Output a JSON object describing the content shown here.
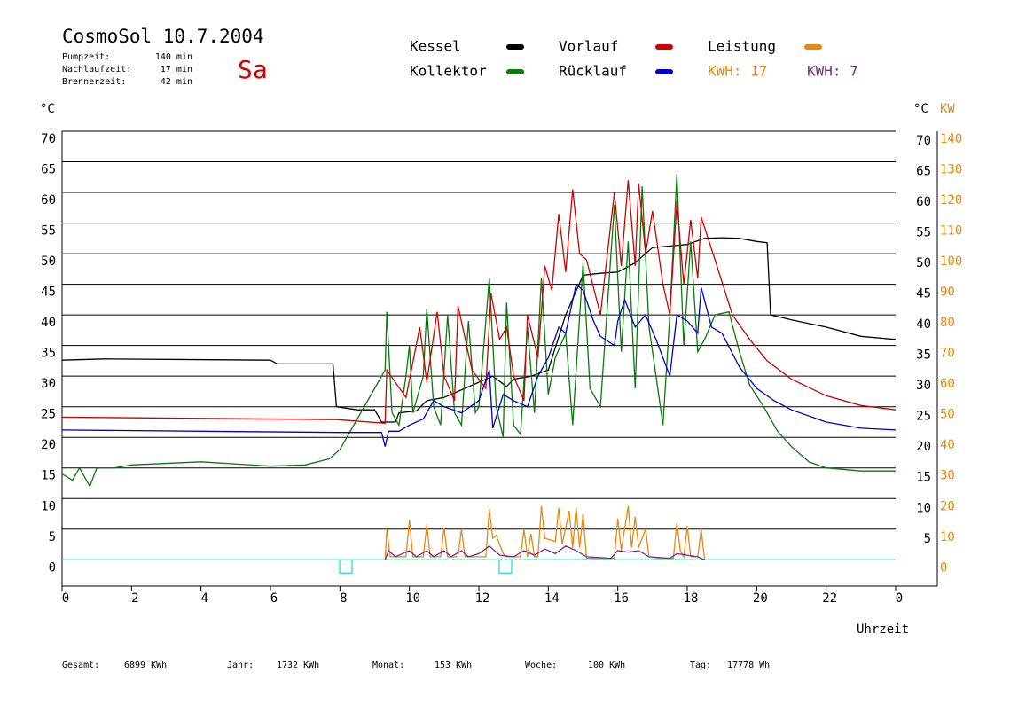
{
  "header": {
    "title": "CosmoSol 10.7.2004",
    "day": "Sa",
    "info": [
      {
        "label": "Pumpzeit:",
        "value": "140 min"
      },
      {
        "label": "Nachlaufzeit:",
        "value": "17 min"
      },
      {
        "label": "Brennerzeit:",
        "value": "42 min"
      }
    ]
  },
  "chart_data": {
    "type": "line",
    "xlabel": "Uhrzeit",
    "ylabel": "°C",
    "y2label": "KW",
    "xlim": [
      0,
      25.2
    ],
    "xticks": [
      0,
      2,
      4,
      6,
      8,
      10,
      12,
      14,
      16,
      18,
      20,
      22,
      {
        "value": 24,
        "label": "0"
      }
    ],
    "ylim": [
      -4.3,
      70
    ],
    "yticks": [
      0,
      5,
      10,
      15,
      20,
      25,
      30,
      35,
      40,
      45,
      50,
      55,
      60,
      65,
      70
    ],
    "y2lim": [
      -8.6,
      140
    ],
    "y2ticks": [
      0,
      10,
      20,
      30,
      40,
      50,
      60,
      70,
      80,
      90,
      100,
      110,
      120,
      130,
      140
    ],
    "grid": true,
    "annotations": [
      {
        "text": "KWH: 17",
        "color": "#e8880e"
      },
      {
        "text": "KWH: 7",
        "color": "#7a2a8a"
      }
    ],
    "series": [
      {
        "name": "Kessel",
        "color": "#000000",
        "x": [
          0,
          1.2,
          6,
          6.2,
          7.8,
          7.9,
          8.5,
          9.0,
          9.2,
          9.6,
          9.7,
          10.2,
          10.5,
          11,
          11.6,
          12.4,
          12.8,
          13.0,
          13.5,
          14,
          14.5,
          15,
          15.5,
          16,
          16.5,
          17,
          18,
          18.5,
          19,
          19.5,
          20,
          20.3,
          20.4,
          21,
          22,
          23,
          24
        ],
        "values": [
          32.6,
          32.8,
          32.6,
          32,
          32,
          25,
          24.5,
          24.5,
          22.5,
          22.5,
          24,
          24.3,
          26,
          26.5,
          28,
          30,
          28.3,
          29.5,
          30,
          31,
          40,
          46.5,
          46.8,
          47,
          48.5,
          51,
          51.5,
          52.5,
          52.6,
          52.5,
          52,
          51.8,
          40,
          39.2,
          38,
          36.5,
          36
        ]
      },
      {
        "name": "Kollektor",
        "color": "#0a7a0a",
        "x": [
          0,
          0.3,
          0.5,
          0.8,
          1,
          1.5,
          2,
          4,
          6,
          7,
          7.7,
          8,
          8.5,
          9,
          9.3,
          9.35,
          9.5,
          9.7,
          9.9,
          10.0,
          10.1,
          10.4,
          10.5,
          10.7,
          10.9,
          11.1,
          11.3,
          11.5,
          11.7,
          11.9,
          12.0,
          12.3,
          12.5,
          12.7,
          12.8,
          13.0,
          13.2,
          13.4,
          13.6,
          13.8,
          14.0,
          14.2,
          14.5,
          14.7,
          15.0,
          15.2,
          15.5,
          15.9,
          16.1,
          16.3,
          16.5,
          16.7,
          16.9,
          17.1,
          17.3,
          17.5,
          17.7,
          17.9,
          18.1,
          18.3,
          18.5,
          18.8,
          19.2,
          19.5,
          19.8,
          20.2,
          20.6,
          21.0,
          21.5,
          22,
          23,
          24
        ],
        "values": [
          14,
          13,
          15,
          12,
          15,
          15,
          15.5,
          16,
          15.3,
          15.5,
          16.5,
          18,
          23,
          28,
          31,
          40.5,
          24,
          22,
          30,
          35,
          24,
          30,
          41,
          25,
          22,
          40,
          24,
          22,
          39,
          24,
          25,
          46,
          25,
          20,
          42,
          22,
          20.5,
          38,
          24,
          46,
          27,
          33,
          37,
          22,
          48.5,
          28,
          25,
          58,
          34,
          52,
          28,
          61,
          38,
          30,
          22,
          40,
          63,
          35,
          52,
          34,
          36,
          40,
          40.5,
          34,
          28.5,
          25,
          21,
          18.5,
          16,
          15,
          14.5,
          14.5
        ]
      },
      {
        "name": "Vorlauf",
        "color": "#d00000",
        "x": [
          0,
          7.9,
          9.3,
          9.35,
          9.9,
          10.3,
          10.5,
          10.8,
          11.0,
          11.3,
          11.4,
          11.8,
          12.2,
          12.35,
          12.6,
          12.8,
          13.0,
          13.3,
          13.4,
          13.7,
          13.9,
          14.1,
          14.3,
          14.5,
          14.7,
          14.9,
          15.1,
          15.5,
          15.9,
          16.1,
          16.3,
          16.5,
          16.6,
          16.8,
          17.0,
          17.3,
          17.5,
          17.7,
          17.9,
          18.1,
          18.3,
          18.4,
          18.8,
          19.3,
          19.8,
          20.3,
          21,
          22,
          23,
          24
        ],
        "values": [
          23.3,
          22.9,
          22.3,
          31,
          26.5,
          38,
          29,
          40.5,
          30,
          26,
          41.5,
          31,
          28,
          43.5,
          36,
          38,
          30,
          26,
          40,
          33,
          48,
          44,
          56.5,
          47,
          60.5,
          50,
          49,
          40,
          60,
          48,
          62,
          48,
          61.5,
          50,
          57,
          45,
          40,
          58.5,
          45,
          55.5,
          46,
          56,
          49,
          40,
          36,
          32.5,
          29.5,
          26.8,
          25.2,
          24.5
        ]
      },
      {
        "name": "Rücklauf",
        "color": "#0000c8",
        "x": [
          0,
          8,
          9.2,
          9.3,
          9.4,
          9.7,
          10,
          10.4,
          10.7,
          11,
          11.5,
          12,
          12.3,
          12.4,
          12.7,
          13.0,
          13.4,
          13.7,
          14,
          14.3,
          14.5,
          14.8,
          15.0,
          15.3,
          15.5,
          15.9,
          16.0,
          16.2,
          16.5,
          16.8,
          17.1,
          17.3,
          17.5,
          17.7,
          18,
          18.3,
          18.4,
          18.7,
          19,
          19.5,
          20,
          20.5,
          21,
          22,
          23,
          24
        ],
        "values": [
          21.2,
          20.8,
          20.8,
          18.5,
          21,
          21,
          22,
          23,
          26,
          25,
          24,
          26,
          31,
          21.5,
          27,
          26,
          25,
          30,
          33,
          38,
          37,
          45,
          44,
          39,
          36.5,
          35,
          39,
          42.5,
          38,
          40,
          36,
          33,
          30,
          40,
          39,
          37,
          44.5,
          38,
          37,
          31.5,
          28,
          26,
          24.5,
          22.5,
          21.5,
          21.2
        ]
      },
      {
        "name": "Leistung",
        "color": "#e8880e",
        "axis": "y2",
        "x": [
          9.3,
          9.35,
          9.45,
          9.9,
          10.0,
          10.1,
          10.4,
          10.5,
          10.6,
          10.9,
          11.0,
          11.1,
          11.4,
          11.5,
          11.6,
          12.2,
          12.3,
          12.4,
          12.5,
          12.7,
          12.8,
          13.2,
          13.3,
          13.4,
          13.5,
          13.6,
          13.7,
          13.8,
          13.9,
          14.2,
          14.3,
          14.4,
          14.6,
          14.7,
          14.8,
          14.9,
          15.0,
          15.1,
          15.9,
          16.0,
          16.1,
          16.3,
          16.4,
          16.5,
          16.6,
          16.8,
          16.9,
          17.2,
          17.6,
          17.7,
          17.8,
          17.9,
          18.0,
          18.1,
          18.3,
          18.4,
          18.5
        ],
        "values": [
          0,
          10,
          1,
          1,
          13,
          1,
          1,
          11.5,
          1,
          1,
          10.5,
          1,
          1,
          10,
          1,
          1,
          16.5,
          7,
          8,
          2,
          1,
          1,
          10,
          1,
          8.5,
          1,
          1,
          17.5,
          7,
          6,
          17,
          5,
          16,
          4,
          17,
          4,
          15,
          0.5,
          0.5,
          13.5,
          3,
          17.5,
          4,
          14,
          4,
          10,
          1,
          0.5,
          0.5,
          12,
          3,
          1,
          11,
          1,
          1,
          10,
          0
        ]
      },
      {
        "color": "#7a2a8a",
        "axis": "y2",
        "x": [
          9.3,
          9.4,
          9.6,
          10.0,
          10.2,
          10.5,
          10.7,
          11.0,
          11.2,
          11.5,
          11.7,
          12.0,
          12.3,
          12.6,
          13.0,
          13.3,
          13.6,
          13.9,
          14.2,
          14.5,
          14.8,
          15.1,
          15.8,
          16.0,
          16.3,
          16.6,
          16.9,
          17.5,
          17.7,
          18.0,
          18.3,
          18.5
        ],
        "values": [
          0,
          3,
          1,
          3,
          1,
          3,
          1,
          3,
          1,
          3,
          1,
          2,
          4.5,
          1.5,
          1,
          3,
          1.5,
          3.5,
          2,
          4.5,
          3,
          1,
          0.5,
          3,
          2.5,
          3,
          1,
          0.5,
          2,
          1.5,
          1,
          0
        ]
      }
    ]
  },
  "footer": [
    {
      "label": "Gesamt:",
      "value": "6899 KWh"
    },
    {
      "label": "Jahr:",
      "value": "1732 KWh"
    },
    {
      "label": "Monat:",
      "value": "153 KWh"
    },
    {
      "label": "Woche:",
      "value": "100 KWh"
    },
    {
      "label": "Tag:",
      "value": "17778 Wh"
    }
  ]
}
